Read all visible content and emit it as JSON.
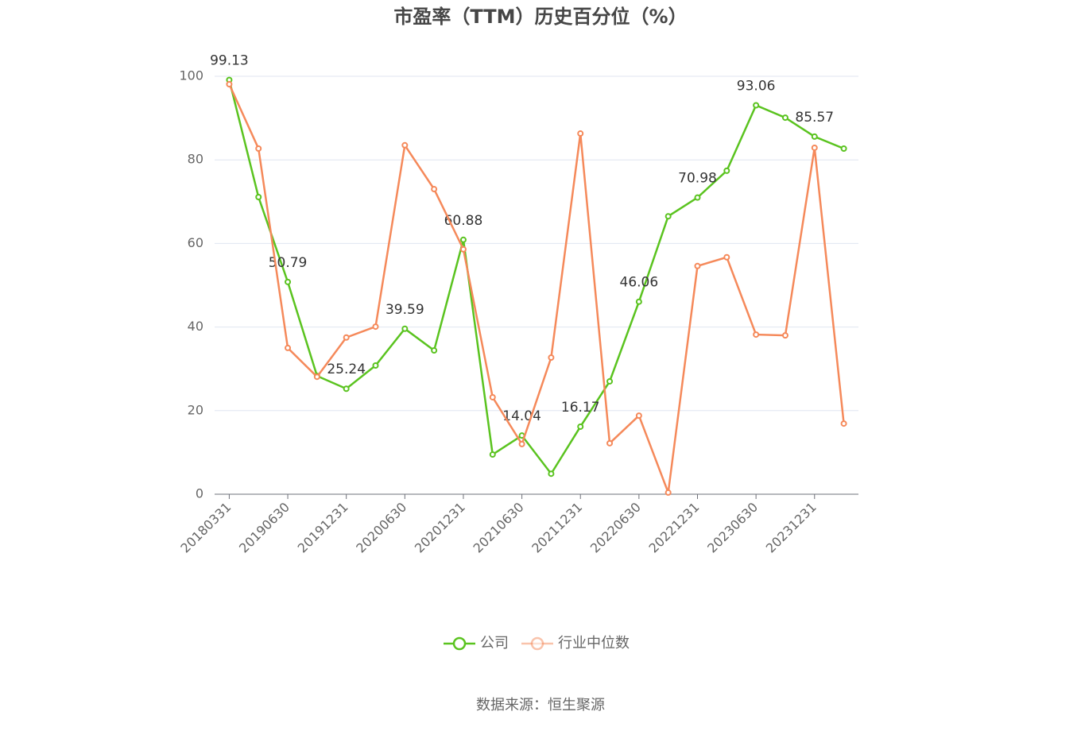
{
  "chart_data": {
    "type": "line",
    "title": "市盈率（TTM）历史百分位（%）",
    "categories": [
      "20180331",
      null,
      "20190630",
      null,
      "20191231",
      null,
      "20200630",
      null,
      "20201231",
      null,
      "20210630",
      null,
      "20211231",
      null,
      "20220630",
      null,
      "20221231",
      null,
      "20230630",
      null,
      "20231231",
      null
    ],
    "series": [
      {
        "name": "公司",
        "color": "#5ac31f",
        "values": [
          99.13,
          71.1,
          50.79,
          28.3,
          25.24,
          30.8,
          39.59,
          34.4,
          60.88,
          9.5,
          14.04,
          4.9,
          16.17,
          27.0,
          46.06,
          66.5,
          70.98,
          77.4,
          93.06,
          90.1,
          85.57,
          82.7
        ]
      },
      {
        "name": "行业中位数",
        "color": "#f5895a",
        "values": [
          98.1,
          82.7,
          35.0,
          28.1,
          37.5,
          40.1,
          83.5,
          73.0,
          58.6,
          23.2,
          12.0,
          32.7,
          86.3,
          12.2,
          18.8,
          0.4,
          54.6,
          56.7,
          38.2,
          38.0,
          82.9,
          16.9
        ]
      }
    ],
    "ylim": [
      0,
      100
    ],
    "yticks": [
      0,
      20,
      40,
      60,
      80,
      100
    ],
    "grid": true,
    "legend": "bottom",
    "source": "数据来源：恒生聚源"
  }
}
